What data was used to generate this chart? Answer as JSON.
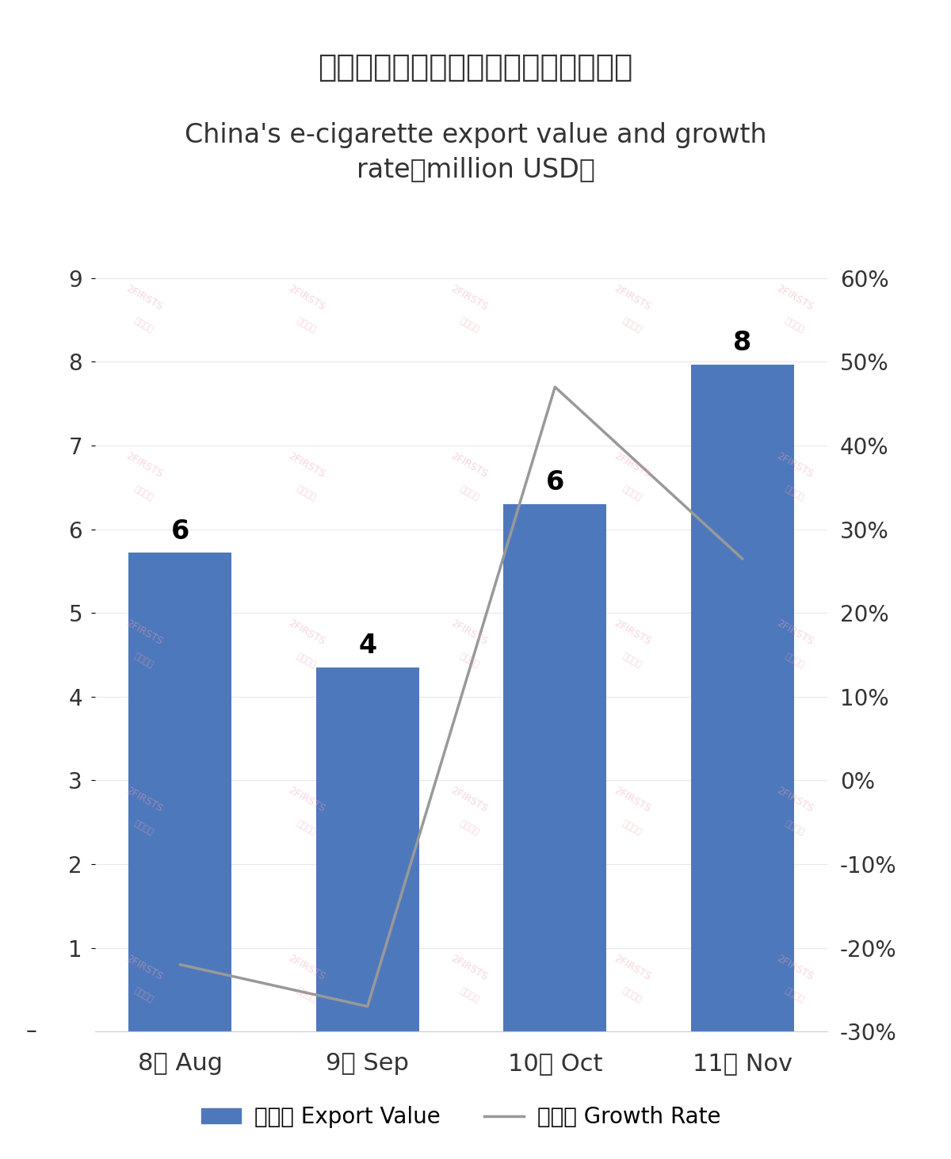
{
  "title_cn": "中国电子烟出口额及增速（百万美元）",
  "title_en": "China's e-cigarette export value and growth\nrate（million USD）",
  "categories": [
    "8月 Aug",
    "9月 Sep",
    "10月 Oct",
    "11月 Nov"
  ],
  "bar_values": [
    5.72,
    4.35,
    6.3,
    7.97
  ],
  "bar_labels": [
    "6",
    "4",
    "6",
    "8"
  ],
  "growth_rates": [
    -0.22,
    -0.27,
    0.47,
    0.2646
  ],
  "bar_color": "#4e78bc",
  "line_color": "#999999",
  "left_ylim": [
    0,
    9
  ],
  "left_yticks": [
    1,
    2,
    3,
    4,
    5,
    6,
    7,
    8,
    9
  ],
  "left_yticklabels": [
    "1",
    "2",
    "3",
    "4",
    "5",
    "6",
    "7",
    "8",
    "9"
  ],
  "right_ylim": [
    -0.3,
    0.6
  ],
  "right_yticks": [
    -0.3,
    -0.2,
    -0.1,
    0.0,
    0.1,
    0.2,
    0.3,
    0.4,
    0.5,
    0.6
  ],
  "right_yticklabels": [
    "-30%",
    "-20%",
    "-10%",
    "0%",
    "10%",
    "20%",
    "30%",
    "40%",
    "50%",
    "60%"
  ],
  "legend_bar_label": "出口额 Export Value",
  "legend_line_label": "增长率 Growth Rate",
  "background_color": "#ffffff",
  "watermark_texts": [
    "2FIRSTS",
    "两个至上"
  ],
  "bar_width": 0.55,
  "title_cn_fontsize": 28,
  "title_en_fontsize": 24,
  "tick_fontsize": 20,
  "label_fontsize": 22,
  "bar_label_fontsize": 24,
  "legend_fontsize": 20
}
